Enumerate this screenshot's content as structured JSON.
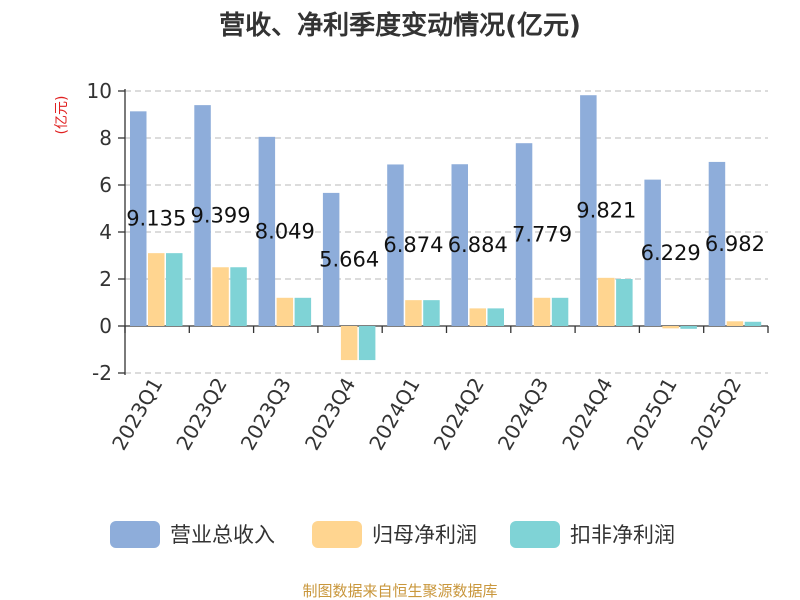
{
  "colors": {
    "revenue": "#8eadda",
    "net_profit": "#ffd590",
    "deducted_profit": "#7fd3d6",
    "source_text": "#c9973c",
    "ylabel": "#e02020"
  },
  "chart_data": {
    "type": "bar",
    "title": "营收、净利季度变动情况(亿元)",
    "ylabel": "(亿元)",
    "xlabel": "",
    "ylim": [
      -2,
      10
    ],
    "yticks": [
      -2,
      0,
      2,
      4,
      6,
      8,
      10
    ],
    "grid": true,
    "legend_position": "bottom",
    "categories": [
      "2023Q1",
      "2023Q2",
      "2023Q3",
      "2023Q4",
      "2024Q1",
      "2024Q2",
      "2024Q3",
      "2024Q4",
      "2025Q1",
      "2025Q2"
    ],
    "series": [
      {
        "name": "营业总收入",
        "color_key": "revenue",
        "values": [
          9.135,
          9.399,
          8.049,
          5.664,
          6.874,
          6.884,
          7.779,
          9.821,
          6.229,
          6.982
        ],
        "labels": [
          "9.135",
          "9.399",
          "8.049",
          "5.664",
          "6.874",
          "6.884",
          "7.779",
          "9.821",
          "6.229",
          "6.982"
        ]
      },
      {
        "name": "归母净利润",
        "color_key": "net_profit",
        "values": [
          3.1,
          2.5,
          1.2,
          -1.45,
          1.1,
          0.75,
          1.2,
          2.05,
          -0.1,
          0.2
        ]
      },
      {
        "name": "扣非净利润",
        "color_key": "deducted_profit",
        "values": [
          3.1,
          2.5,
          1.2,
          -1.45,
          1.1,
          0.75,
          1.2,
          2.0,
          -0.12,
          0.18
        ]
      }
    ],
    "source": "制图数据来自恒生聚源数据库"
  }
}
